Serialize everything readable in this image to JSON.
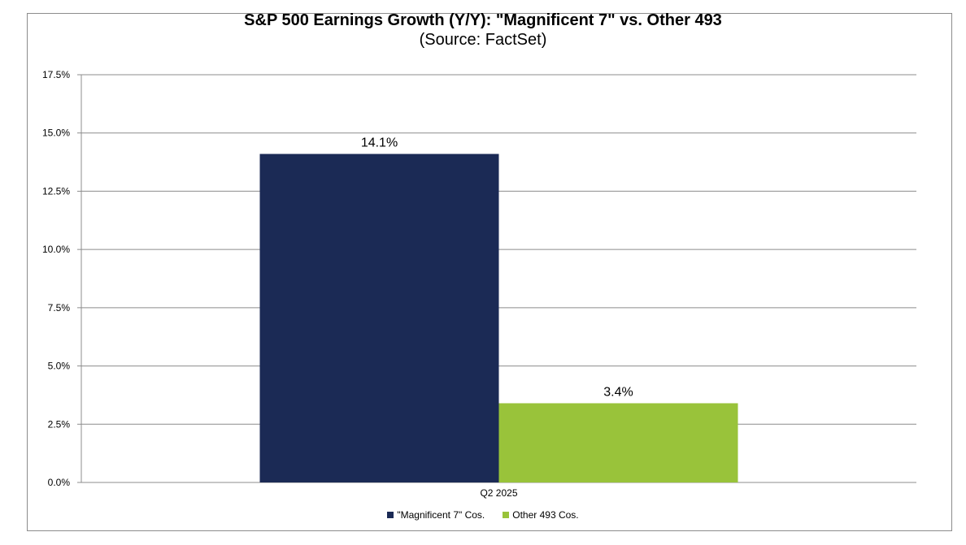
{
  "chart_data": {
    "type": "bar",
    "title": "S&P 500 Earnings Growth (Y/Y): \"Magnificent 7\" vs. Other 493",
    "subtitle": "(Source: FactSet)",
    "categories": [
      "Q2 2025"
    ],
    "series": [
      {
        "name": "\"Magnificent 7\" Cos.",
        "values": [
          14.1
        ],
        "color": "#1b2a55",
        "value_label": "14.1%"
      },
      {
        "name": "Other 493 Cos.",
        "values": [
          3.4
        ],
        "color": "#99c33a",
        "value_label": "3.4%"
      }
    ],
    "ylim": [
      0,
      17.5
    ],
    "yticks": [
      "0.0%",
      "2.5%",
      "5.0%",
      "7.5%",
      "10.0%",
      "12.5%",
      "15.0%",
      "17.5%"
    ],
    "ytick_values": [
      0,
      2.5,
      5,
      7.5,
      10,
      12.5,
      15,
      17.5
    ],
    "grid": true,
    "legend_position": "bottom"
  }
}
